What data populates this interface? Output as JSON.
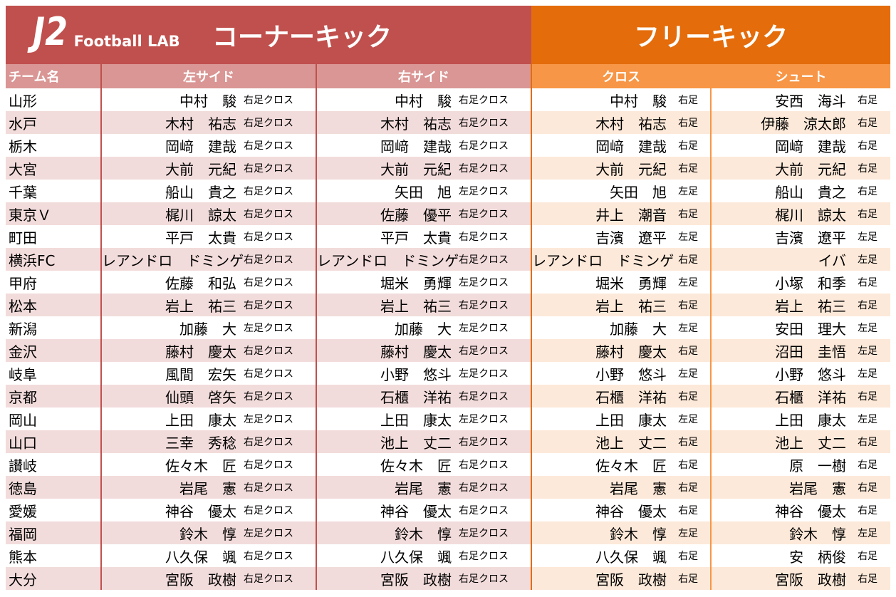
{
  "header": {
    "logo_j2": "J2",
    "logo_lab": "Football LAB",
    "corner_title": "コーナーキック",
    "free_title": "フリーキック"
  },
  "columns": {
    "team": "チーム名",
    "left_side": "左サイド",
    "right_side": "右サイド",
    "cross": "クロス",
    "shoot": "シュート"
  },
  "colors": {
    "corner_header": "#c0504d",
    "corner_subheader": "#d99694",
    "corner_stripe": "#f2dcdb",
    "free_header": "#e46c0a",
    "free_subheader": "#f79646",
    "free_stripe": "#fde9d9"
  },
  "rows": [
    {
      "team": "山形",
      "left": "中村　駿",
      "left_foot": "右足クロス",
      "right": "中村　駿",
      "right_foot": "右足クロス",
      "cross": "中村　駿",
      "cross_foot": "右足",
      "shoot": "安西　海斗",
      "shoot_foot": "右足"
    },
    {
      "team": "水戸",
      "left": "木村　祐志",
      "left_foot": "右足クロス",
      "right": "木村　祐志",
      "right_foot": "右足クロス",
      "cross": "木村　祐志",
      "cross_foot": "右足",
      "shoot": "伊藤　涼太郎",
      "shoot_foot": "右足"
    },
    {
      "team": "栃木",
      "left": "岡﨑　建哉",
      "left_foot": "右足クロス",
      "right": "岡﨑　建哉",
      "right_foot": "右足クロス",
      "cross": "岡﨑　建哉",
      "cross_foot": "右足",
      "shoot": "岡﨑　建哉",
      "shoot_foot": "右足"
    },
    {
      "team": "大宮",
      "left": "大前　元紀",
      "left_foot": "右足クロス",
      "right": "大前　元紀",
      "right_foot": "右足クロス",
      "cross": "大前　元紀",
      "cross_foot": "右足",
      "shoot": "大前　元紀",
      "shoot_foot": "右足"
    },
    {
      "team": "千葉",
      "left": "船山　貴之",
      "left_foot": "右足クロス",
      "right": "矢田　旭",
      "right_foot": "左足クロス",
      "cross": "矢田　旭",
      "cross_foot": "左足",
      "shoot": "船山　貴之",
      "shoot_foot": "右足"
    },
    {
      "team": "東京Ｖ",
      "left": "梶川　諒太",
      "left_foot": "右足クロス",
      "right": "佐藤　優平",
      "right_foot": "右足クロス",
      "cross": "井上　潮音",
      "cross_foot": "右足",
      "shoot": "梶川　諒太",
      "shoot_foot": "右足"
    },
    {
      "team": "町田",
      "left": "平戸　太貴",
      "left_foot": "右足クロス",
      "right": "平戸　太貴",
      "right_foot": "右足クロス",
      "cross": "吉濱　遼平",
      "cross_foot": "左足",
      "shoot": "吉濱　遼平",
      "shoot_foot": "左足"
    },
    {
      "team": "横浜FC",
      "left": "レアンドロ　ドミンゲス",
      "left_foot": "右足クロス",
      "right": "レアンドロ　ドミンゲス",
      "right_foot": "右足クロス",
      "cross": "レアンドロ　ドミンゲス",
      "cross_foot": "右足",
      "shoot": "イバ",
      "shoot_foot": "左足"
    },
    {
      "team": "甲府",
      "left": "佐藤　和弘",
      "left_foot": "右足クロス",
      "right": "堀米　勇輝",
      "right_foot": "左足クロス",
      "cross": "堀米　勇輝",
      "cross_foot": "左足",
      "shoot": "小塚　和季",
      "shoot_foot": "右足"
    },
    {
      "team": "松本",
      "left": "岩上　祐三",
      "left_foot": "右足クロス",
      "right": "岩上　祐三",
      "right_foot": "右足クロス",
      "cross": "岩上　祐三",
      "cross_foot": "右足",
      "shoot": "岩上　祐三",
      "shoot_foot": "右足"
    },
    {
      "team": "新潟",
      "left": "加藤　大",
      "left_foot": "左足クロス",
      "right": "加藤　大",
      "right_foot": "左足クロス",
      "cross": "加藤　大",
      "cross_foot": "左足",
      "shoot": "安田　理大",
      "shoot_foot": "左足"
    },
    {
      "team": "金沢",
      "left": "藤村　慶太",
      "left_foot": "右足クロス",
      "right": "藤村　慶太",
      "right_foot": "右足クロス",
      "cross": "藤村　慶太",
      "cross_foot": "右足",
      "shoot": "沼田　圭悟",
      "shoot_foot": "左足"
    },
    {
      "team": "岐阜",
      "left": "風間　宏矢",
      "left_foot": "右足クロス",
      "right": "小野　悠斗",
      "right_foot": "左足クロス",
      "cross": "小野　悠斗",
      "cross_foot": "左足",
      "shoot": "小野　悠斗",
      "shoot_foot": "左足"
    },
    {
      "team": "京都",
      "left": "仙頭　啓矢",
      "left_foot": "右足クロス",
      "right": "石櫃　洋祐",
      "right_foot": "右足クロス",
      "cross": "石櫃　洋祐",
      "cross_foot": "右足",
      "shoot": "石櫃　洋祐",
      "shoot_foot": "右足"
    },
    {
      "team": "岡山",
      "left": "上田　康太",
      "left_foot": "左足クロス",
      "right": "上田　康太",
      "right_foot": "左足クロス",
      "cross": "上田　康太",
      "cross_foot": "左足",
      "shoot": "上田　康太",
      "shoot_foot": "左足"
    },
    {
      "team": "山口",
      "left": "三幸　秀稔",
      "left_foot": "右足クロス",
      "right": "池上　丈二",
      "right_foot": "右足クロス",
      "cross": "池上　丈二",
      "cross_foot": "右足",
      "shoot": "池上　丈二",
      "shoot_foot": "右足"
    },
    {
      "team": "讃岐",
      "left": "佐々木　匠",
      "left_foot": "右足クロス",
      "right": "佐々木　匠",
      "right_foot": "右足クロス",
      "cross": "佐々木　匠",
      "cross_foot": "右足",
      "shoot": "原　一樹",
      "shoot_foot": "右足"
    },
    {
      "team": "徳島",
      "left": "岩尾　憲",
      "left_foot": "右足クロス",
      "right": "岩尾　憲",
      "right_foot": "右足クロス",
      "cross": "岩尾　憲",
      "cross_foot": "右足",
      "shoot": "岩尾　憲",
      "shoot_foot": "右足"
    },
    {
      "team": "愛媛",
      "left": "神谷　優太",
      "left_foot": "右足クロス",
      "right": "神谷　優太",
      "right_foot": "右足クロス",
      "cross": "神谷　優太",
      "cross_foot": "右足",
      "shoot": "神谷　優太",
      "shoot_foot": "右足"
    },
    {
      "team": "福岡",
      "left": "鈴木　惇",
      "left_foot": "左足クロス",
      "right": "鈴木　惇",
      "right_foot": "左足クロス",
      "cross": "鈴木　惇",
      "cross_foot": "左足",
      "shoot": "鈴木　惇",
      "shoot_foot": "左足"
    },
    {
      "team": "熊本",
      "left": "八久保　颯",
      "left_foot": "右足クロス",
      "right": "八久保　颯",
      "right_foot": "右足クロス",
      "cross": "八久保　颯",
      "cross_foot": "右足",
      "shoot": "安　柄俊",
      "shoot_foot": "右足"
    },
    {
      "team": "大分",
      "left": "宮阪　政樹",
      "left_foot": "右足クロス",
      "right": "宮阪　政樹",
      "right_foot": "右足クロス",
      "cross": "宮阪　政樹",
      "cross_foot": "右足",
      "shoot": "宮阪　政樹",
      "shoot_foot": "右足"
    }
  ]
}
